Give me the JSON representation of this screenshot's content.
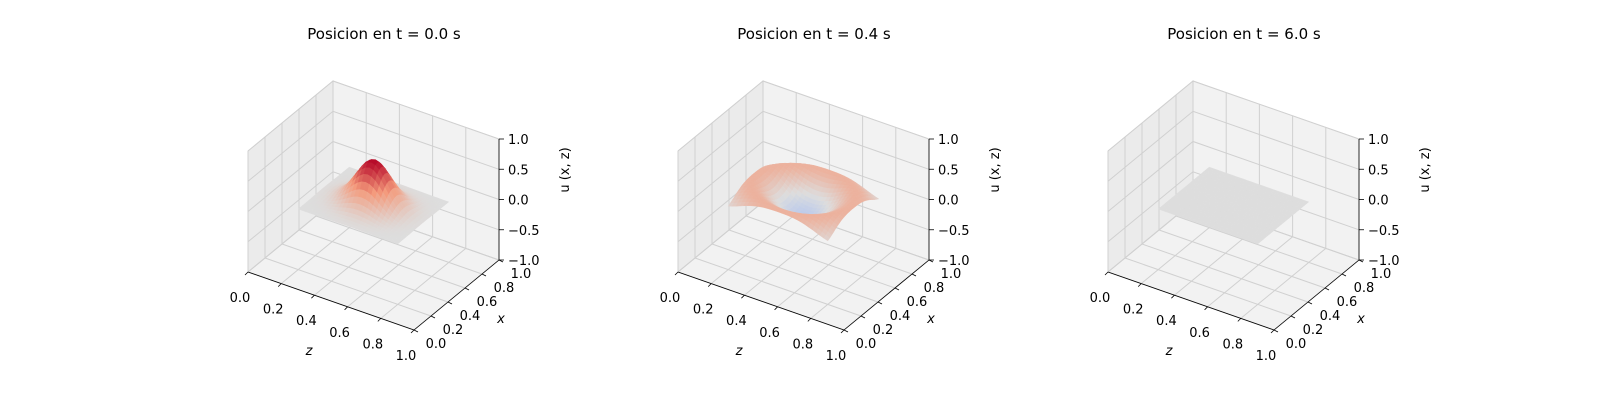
{
  "chart_data": [
    {
      "type": "surface3d",
      "title": "Posicion en t = 0.0 s",
      "xlabel": "z",
      "ylabel": "x",
      "zlabel": "u (x, z)",
      "xlim": [
        0,
        1
      ],
      "ylim": [
        0,
        1
      ],
      "zlim": [
        -1,
        1
      ],
      "xticks": [
        "0.0",
        "0.2",
        "0.4",
        "0.6",
        "0.8",
        "1.0"
      ],
      "yticks": [
        "0.0",
        "0.2",
        "0.4",
        "0.6",
        "0.8",
        "1.0"
      ],
      "zticks": [
        "−1.0",
        "−0.5",
        "0.0",
        "0.5",
        "1.0"
      ],
      "surface": {
        "shape": "gaussian_bump",
        "center_z": 0.5,
        "center_x": 0.5,
        "amplitude": 0.75,
        "width": 0.1
      },
      "colormap": "coolwarm",
      "grid": true
    },
    {
      "type": "surface3d",
      "title": "Posicion en t = 0.4 s",
      "xlabel": "z",
      "ylabel": "x",
      "zlabel": "u (x, z)",
      "xlim": [
        0,
        1
      ],
      "ylim": [
        0,
        1
      ],
      "zlim": [
        -1,
        1
      ],
      "xticks": [
        "0.0",
        "0.2",
        "0.4",
        "0.6",
        "0.8",
        "1.0"
      ],
      "yticks": [
        "0.0",
        "0.2",
        "0.4",
        "0.6",
        "0.8",
        "1.0"
      ],
      "zticks": [
        "−1.0",
        "−0.5",
        "0.0",
        "0.5",
        "1.0"
      ],
      "surface": {
        "shape": "ring_wave",
        "center_z": 0.5,
        "center_x": 0.5,
        "amplitude": 0.25,
        "ring_radius": 0.28,
        "ring_width": 0.08,
        "center_dip": -0.15,
        "dip_width": 0.09
      },
      "colormap": "coolwarm",
      "grid": true
    },
    {
      "type": "surface3d",
      "title": "Posicion en t = 6.0 s",
      "xlabel": "z",
      "ylabel": "x",
      "zlabel": "u (x, z)",
      "xlim": [
        0,
        1
      ],
      "ylim": [
        0,
        1
      ],
      "zlim": [
        -1,
        1
      ],
      "xticks": [
        "0.0",
        "0.2",
        "0.4",
        "0.6",
        "0.8",
        "1.0"
      ],
      "yticks": [
        "0.0",
        "0.2",
        "0.4",
        "0.6",
        "0.8",
        "1.0"
      ],
      "zticks": [
        "−1.0",
        "−0.5",
        "0.0",
        "0.5",
        "1.0"
      ],
      "surface": {
        "shape": "flat",
        "center_z": 0.5,
        "center_x": 0.5,
        "amplitude": 0.0
      },
      "colormap": "coolwarm",
      "grid": true
    }
  ]
}
